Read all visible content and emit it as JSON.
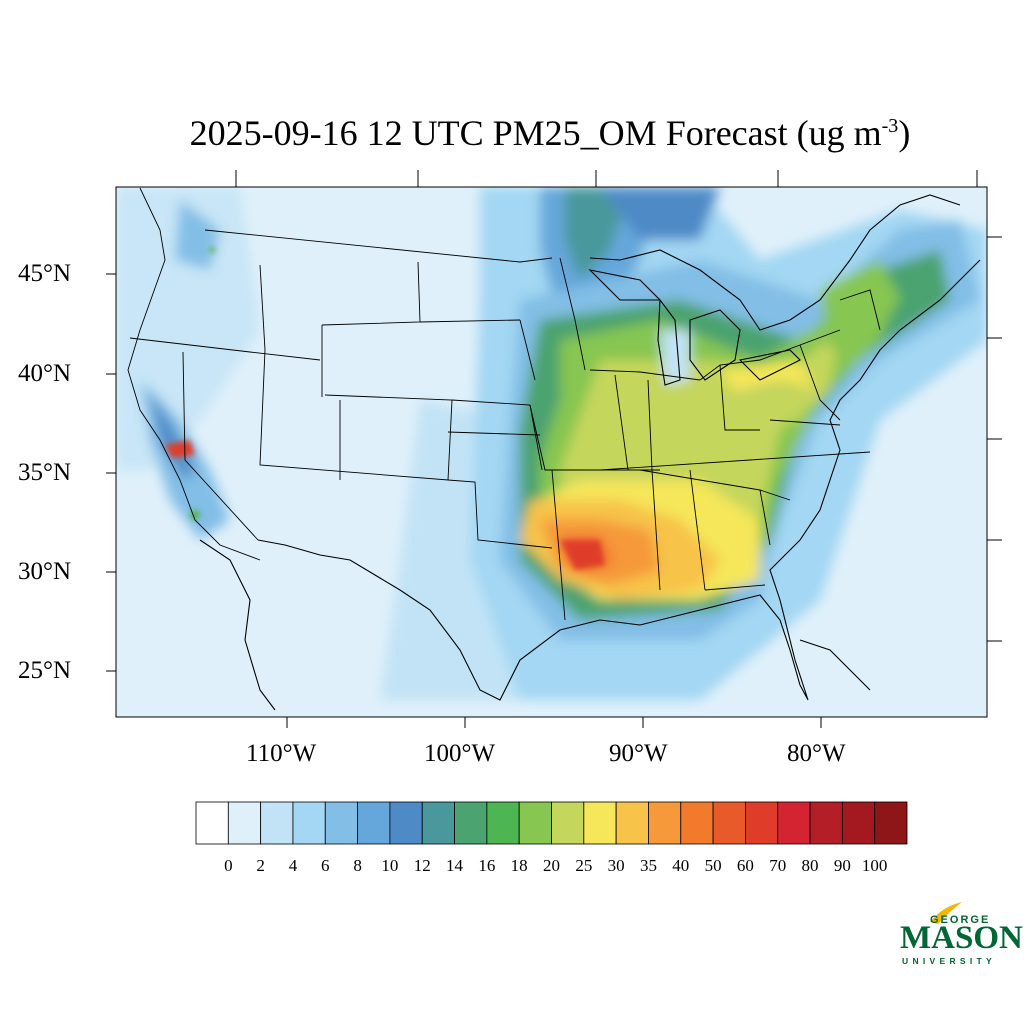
{
  "title": {
    "main": "2025-09-16 12 UTC PM25_OM Forecast (ug m",
    "superscript": "-3",
    "close": ")"
  },
  "map": {
    "lat_labels": [
      "45°N",
      "40°N",
      "35°N",
      "30°N",
      "25°N"
    ],
    "lon_labels": [
      "110°W",
      "100°W",
      "90°W",
      "80°W"
    ],
    "background_color": "#dff0fa",
    "boundary_color": "#000000"
  },
  "colorbar": {
    "levels": [
      "0",
      "2",
      "4",
      "6",
      "8",
      "10",
      "12",
      "14",
      "16",
      "18",
      "20",
      "25",
      "30",
      "35",
      "40",
      "50",
      "60",
      "70",
      "80",
      "90",
      "100"
    ],
    "colors": [
      "#ffffff",
      "#dff0fa",
      "#c2e3f6",
      "#a3d7f3",
      "#82bee6",
      "#65a7da",
      "#4d8ac6",
      "#4a989b",
      "#4ba36f",
      "#4db551",
      "#86c651",
      "#c4d65b",
      "#f5e65a",
      "#f7c349",
      "#f5993a",
      "#f17a2d",
      "#e95a2b",
      "#df3d2a",
      "#d42431",
      "#b31e27",
      "#a3191f",
      "#8e1518"
    ]
  },
  "logo": {
    "line1": "GEORGE",
    "line2": "MASON",
    "line3": "UNIVERSITY",
    "color": "#006633",
    "accent": "#f2b700"
  }
}
